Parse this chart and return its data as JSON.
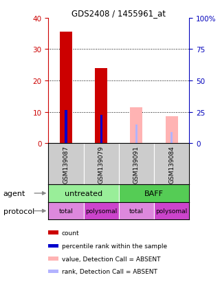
{
  "title": "GDS2408 / 1455961_at",
  "samples": [
    "GSM139087",
    "GSM139079",
    "GSM139091",
    "GSM139084"
  ],
  "ylim_left": [
    0,
    40
  ],
  "ylim_right": [
    0,
    100
  ],
  "yticks_left": [
    0,
    10,
    20,
    30,
    40
  ],
  "yticks_right": [
    0,
    25,
    50,
    75,
    100
  ],
  "ytick_labels_right": [
    "0",
    "25",
    "50",
    "75",
    "100%"
  ],
  "count_values": [
    35.5,
    24.0,
    0,
    0
  ],
  "percentile_values": [
    10.5,
    9.0,
    0,
    0
  ],
  "absent_value_values": [
    0,
    0,
    11.5,
    8.5
  ],
  "absent_rank_values": [
    0,
    0,
    6.0,
    3.5
  ],
  "count_color": "#cc0000",
  "percentile_color": "#0000cc",
  "absent_value_color": "#ffb3b3",
  "absent_rank_color": "#b3b3ff",
  "agent_untreated_color": "#99ee99",
  "agent_baff_color": "#55cc55",
  "protocol_total_color": "#dd88dd",
  "protocol_polysomal_color": "#cc44cc",
  "protocol_row": [
    "total",
    "polysomal",
    "total",
    "polysomal"
  ],
  "grid_color": "#888888",
  "bg_color": "#ffffff",
  "axis_color_left": "#cc0000",
  "axis_color_right": "#0000bb",
  "sample_box_color": "#cccccc",
  "legend_items": [
    {
      "color": "#cc0000",
      "label": "count"
    },
    {
      "color": "#0000cc",
      "label": "percentile rank within the sample"
    },
    {
      "color": "#ffb3b3",
      "label": "value, Detection Call = ABSENT"
    },
    {
      "color": "#b3b3ff",
      "label": "rank, Detection Call = ABSENT"
    }
  ]
}
